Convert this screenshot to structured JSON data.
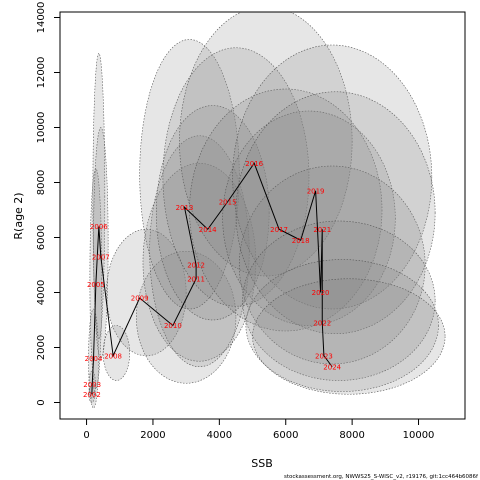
{
  "chart_data": {
    "type": "scatter",
    "xlabel": "SSB",
    "ylabel": "R(age 2)",
    "xlim": [
      -800,
      11400
    ],
    "ylim": [
      -600,
      14200
    ],
    "xticks": [
      0,
      2000,
      4000,
      6000,
      8000,
      10000
    ],
    "yticks": [
      0,
      2000,
      4000,
      6000,
      8000,
      10000,
      12000,
      14000
    ],
    "grid": false,
    "legend": "none",
    "points": [
      {
        "year": "2002",
        "x": 160,
        "y": 300
      },
      {
        "year": "2003",
        "x": 170,
        "y": 650
      },
      {
        "year": "2004",
        "x": 210,
        "y": 1600
      },
      {
        "year": "2005",
        "x": 280,
        "y": 4300
      },
      {
        "year": "2006",
        "x": 370,
        "y": 6400
      },
      {
        "year": "2007",
        "x": 430,
        "y": 5300
      },
      {
        "year": "2008",
        "x": 800,
        "y": 1700
      },
      {
        "year": "2009",
        "x": 1600,
        "y": 3800
      },
      {
        "year": "2010",
        "x": 2600,
        "y": 2800
      },
      {
        "year": "2011",
        "x": 3300,
        "y": 4500
      },
      {
        "year": "2012",
        "x": 3300,
        "y": 5000
      },
      {
        "year": "2013",
        "x": 2950,
        "y": 7100
      },
      {
        "year": "2014",
        "x": 3650,
        "y": 6300
      },
      {
        "year": "2015",
        "x": 4250,
        "y": 7300
      },
      {
        "year": "2016",
        "x": 5050,
        "y": 8700
      },
      {
        "year": "2017",
        "x": 5800,
        "y": 6300
      },
      {
        "year": "2018",
        "x": 6450,
        "y": 5900
      },
      {
        "year": "2019",
        "x": 6900,
        "y": 7700
      },
      {
        "year": "2020",
        "x": 7050,
        "y": 4000
      },
      {
        "year": "2021",
        "x": 7100,
        "y": 6300
      },
      {
        "year": "2022",
        "x": 7100,
        "y": 2900
      },
      {
        "year": "2023",
        "x": 7150,
        "y": 1700
      },
      {
        "year": "2024",
        "x": 7400,
        "y": 1300
      }
    ],
    "confidence_ellipses": [
      {
        "year": "2002",
        "cx": 160,
        "cy": 300,
        "rx": 90,
        "ry": 300
      },
      {
        "year": "2003",
        "cx": 170,
        "cy": 650,
        "rx": 100,
        "ry": 500
      },
      {
        "year": "2004",
        "cx": 210,
        "cy": 1600,
        "rx": 150,
        "ry": 1800
      },
      {
        "year": "2005",
        "cx": 280,
        "cy": 4500,
        "rx": 180,
        "ry": 4000
      },
      {
        "year": "2006",
        "cx": 370,
        "cy": 7500,
        "rx": 180,
        "ry": 5200
      },
      {
        "year": "2007",
        "cx": 430,
        "cy": 5800,
        "rx": 220,
        "ry": 4200
      },
      {
        "year": "2008",
        "cx": 900,
        "cy": 1800,
        "rx": 400,
        "ry": 1000
      },
      {
        "year": "2009",
        "cx": 1800,
        "cy": 4000,
        "rx": 1200,
        "ry": 2300
      },
      {
        "year": "2010",
        "cx": 3000,
        "cy": 3100,
        "rx": 1500,
        "ry": 2400
      },
      {
        "year": "2011",
        "cx": 3400,
        "cy": 5100,
        "rx": 1700,
        "ry": 3600
      },
      {
        "year": "2012",
        "cx": 3400,
        "cy": 5500,
        "rx": 1500,
        "ry": 4200
      },
      {
        "year": "2013",
        "cx": 3100,
        "cy": 8300,
        "rx": 1500,
        "ry": 4900
      },
      {
        "year": "2014",
        "cx": 3800,
        "cy": 6900,
        "rx": 1700,
        "ry": 3900
      },
      {
        "year": "2015",
        "cx": 4500,
        "cy": 8200,
        "rx": 2200,
        "ry": 4700
      },
      {
        "year": "2016",
        "cx": 5400,
        "cy": 9500,
        "rx": 2600,
        "ry": 4900
      },
      {
        "year": "2017",
        "cx": 6000,
        "cy": 7000,
        "rx": 2900,
        "ry": 4400
      },
      {
        "year": "2018",
        "cx": 6700,
        "cy": 6700,
        "rx": 2600,
        "ry": 3900
      },
      {
        "year": "2019",
        "cx": 7400,
        "cy": 8200,
        "rx": 3000,
        "ry": 4800
      },
      {
        "year": "2020",
        "cx": 7400,
        "cy": 5000,
        "rx": 2800,
        "ry": 3600
      },
      {
        "year": "2021",
        "cx": 7500,
        "cy": 6900,
        "rx": 3000,
        "ry": 4400
      },
      {
        "year": "2022",
        "cx": 7600,
        "cy": 3700,
        "rx": 2900,
        "ry": 2900
      },
      {
        "year": "2023",
        "cx": 7700,
        "cy": 2800,
        "rx": 2900,
        "ry": 2400
      },
      {
        "year": "2024",
        "cx": 7900,
        "cy": 2400,
        "rx": 2900,
        "ry": 2100
      }
    ],
    "colors": {
      "ellipse_fill": "#808080",
      "ellipse_stroke": "#555555",
      "path_line": "#000000",
      "year_labels": "#ff0000"
    }
  },
  "footer": {
    "text": "stockassessment.org, NWWS25_S-WISC_v2, r19176, git:1cc464b6086f"
  }
}
